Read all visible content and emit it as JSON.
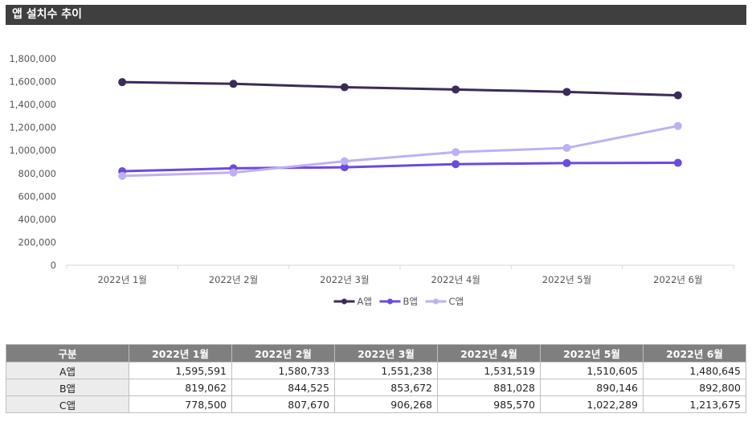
{
  "title": "앱 설치수 추이",
  "chart_data": {
    "type": "line",
    "categories": [
      "2022년 1월",
      "2022년 2월",
      "2022년 3월",
      "2022년 4월",
      "2022년 5월",
      "2022년 6월"
    ],
    "series": [
      {
        "name": "A앱",
        "color": "#3b2c57",
        "values": [
          1595591,
          1580733,
          1551238,
          1531519,
          1510605,
          1480645
        ]
      },
      {
        "name": "B앱",
        "color": "#6b4ae0",
        "values": [
          819062,
          844525,
          853672,
          881028,
          890146,
          892800
        ]
      },
      {
        "name": "C앱",
        "color": "#bfb0f3",
        "values": [
          778500,
          807670,
          906268,
          985570,
          1022289,
          1213675
        ]
      }
    ],
    "ylim": [
      0,
      1800000
    ],
    "yticks": [
      "1,800,000",
      "1,600,000",
      "1,400,000",
      "1,200,000",
      "1,000,000",
      "800,000",
      "600,000",
      "400,000",
      "200,000",
      "0"
    ],
    "legend": "bottom",
    "grid": false
  },
  "table": {
    "header_label": "구분",
    "columns": [
      "2022년 1월",
      "2022년 2월",
      "2022년 3월",
      "2022년 4월",
      "2022년 5월",
      "2022년 6월"
    ],
    "rows": [
      {
        "label": "A앱",
        "cells": [
          "1,595,591",
          "1,580,733",
          "1,551,238",
          "1,531,519",
          "1,510,605",
          "1,480,645"
        ]
      },
      {
        "label": "B앱",
        "cells": [
          "819,062",
          "844,525",
          "853,672",
          "881,028",
          "890,146",
          "892,800"
        ]
      },
      {
        "label": "C앱",
        "cells": [
          "778,500",
          "807,670",
          "906,268",
          "985,570",
          "1,022,289",
          "1,213,675"
        ]
      }
    ]
  }
}
